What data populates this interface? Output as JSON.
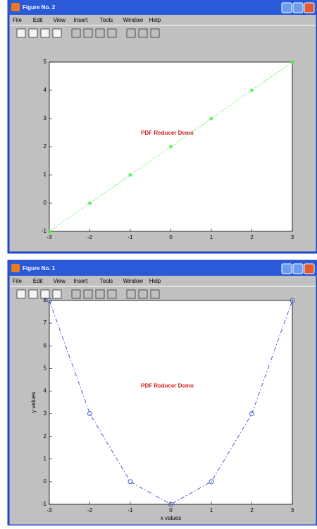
{
  "windows": [
    {
      "title": "Figure No. 2",
      "menu": [
        "File",
        "Edit",
        "View",
        "Insert",
        "Tools",
        "Window",
        "Help"
      ],
      "chart_data": {
        "type": "line",
        "x": [
          -3,
          -2,
          -1,
          0,
          1,
          2,
          3
        ],
        "values": [
          -1,
          0,
          1,
          2,
          3,
          4,
          5
        ],
        "color": "#33ee33",
        "linestyle": "dotted",
        "marker": "*",
        "xlim": [
          -3,
          3
        ],
        "xticks": [
          -3,
          -2,
          -1,
          0,
          1,
          2,
          3
        ],
        "ylim": [
          -1,
          5
        ],
        "yticks": [
          -1,
          0,
          1,
          2,
          3,
          4,
          5
        ],
        "annotation": "PDF Reducer Demo"
      }
    },
    {
      "title": "Figure No. 1",
      "menu": [
        "File",
        "Edit",
        "View",
        "Insert",
        "Tools",
        "Window",
        "Help"
      ],
      "chart_data": {
        "type": "line",
        "x": [
          -3,
          -2,
          -1,
          0,
          1,
          2,
          3
        ],
        "values": [
          8,
          3,
          0,
          -1,
          0,
          3,
          8
        ],
        "color": "#4a5fd0",
        "linestyle": "dashdot",
        "marker": "o",
        "xlim": [
          -3,
          3
        ],
        "xticks": [
          -3,
          -2,
          -1,
          0,
          1,
          2,
          3
        ],
        "ylim": [
          -1,
          8
        ],
        "yticks": [
          -1,
          0,
          1,
          2,
          3,
          4,
          5,
          6,
          7,
          8
        ],
        "xlabel": "x values",
        "ylabel": "y values",
        "annotation": "PDF Reducer Demo"
      }
    }
  ]
}
